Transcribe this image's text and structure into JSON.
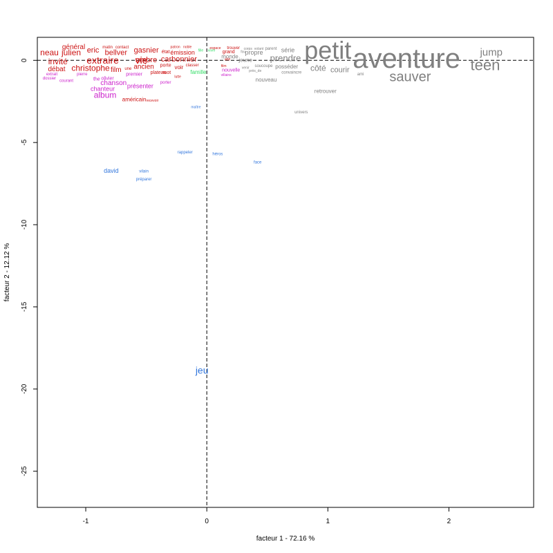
{
  "chart_data": {
    "type": "scatter",
    "title": "",
    "xlabel": "facteur  1  - 72.16 %",
    "ylabel": "facteur  2  - 12.12 %",
    "xlim": [
      -1.4,
      2.7
    ],
    "ylim": [
      -27.2,
      1.4
    ],
    "x_ticks": [
      -1,
      0,
      1,
      2
    ],
    "y_ticks": [
      0,
      -5,
      -10,
      -15,
      -20,
      -25
    ],
    "reference_lines": {
      "x": 0,
      "y": 0
    },
    "grid": false,
    "colors": {
      "red": "#cc1111",
      "magenta": "#cc22cc",
      "blue": "#3377dd",
      "green": "#33dd66",
      "gray": "#7f7f7f"
    },
    "points": [
      {
        "label": "petit",
        "x": 1.0,
        "y": 0.5,
        "size": 36,
        "color": "gray"
      },
      {
        "label": "aventure",
        "x": 1.65,
        "y": 0.0,
        "size": 40,
        "color": "gray"
      },
      {
        "label": "sauver",
        "x": 1.68,
        "y": -1.05,
        "size": 20,
        "color": "gray"
      },
      {
        "label": "teen",
        "x": 2.3,
        "y": -0.35,
        "size": 22,
        "color": "gray"
      },
      {
        "label": "jump",
        "x": 2.35,
        "y": 0.45,
        "size": 15,
        "color": "gray"
      },
      {
        "label": "prendre",
        "x": 0.65,
        "y": 0.1,
        "size": 13,
        "color": "gray"
      },
      {
        "label": "côté",
        "x": 0.92,
        "y": -0.5,
        "size": 12,
        "color": "gray"
      },
      {
        "label": "courir",
        "x": 1.1,
        "y": -0.6,
        "size": 11,
        "color": "gray"
      },
      {
        "label": "série",
        "x": 0.67,
        "y": 0.6,
        "size": 9,
        "color": "gray"
      },
      {
        "label": "propre",
        "x": 0.39,
        "y": 0.45,
        "size": 9,
        "color": "gray"
      },
      {
        "label": "monde",
        "x": 0.19,
        "y": 0.2,
        "size": 8,
        "color": "gray"
      },
      {
        "label": "jeune",
        "x": 0.32,
        "y": 0.0,
        "size": 8,
        "color": "gray"
      },
      {
        "label": "posséder",
        "x": 0.66,
        "y": -0.4,
        "size": 8,
        "color": "gray"
      },
      {
        "label": "soucoupe",
        "x": 0.47,
        "y": -0.35,
        "size": 6,
        "color": "gray"
      },
      {
        "label": "convaincre",
        "x": 0.7,
        "y": -0.75,
        "size": 6,
        "color": "gray"
      },
      {
        "label": "nouveau",
        "x": 0.49,
        "y": -1.2,
        "size": 8,
        "color": "gray"
      },
      {
        "label": "ami",
        "x": 1.27,
        "y": -0.85,
        "size": 6,
        "color": "gray"
      },
      {
        "label": "retrouver",
        "x": 0.98,
        "y": -1.9,
        "size": 8,
        "color": "gray"
      },
      {
        "label": "univers",
        "x": 0.78,
        "y": -3.15,
        "size": 6,
        "color": "gray"
      },
      {
        "label": "corps",
        "x": 0.34,
        "y": 0.7,
        "size": 5,
        "color": "gray"
      },
      {
        "label": "volant",
        "x": 0.43,
        "y": 0.7,
        "size": 5,
        "color": "gray"
      },
      {
        "label": "parent",
        "x": 0.53,
        "y": 0.7,
        "size": 6,
        "color": "gray"
      },
      {
        "label": "près_de",
        "x": 0.4,
        "y": -0.65,
        "size": 5,
        "color": "gray"
      },
      {
        "label": "venir",
        "x": 0.32,
        "y": -0.45,
        "size": 5,
        "color": "gray"
      },
      {
        "label": "extraire",
        "x": -0.86,
        "y": -0.05,
        "size": 14,
        "color": "red"
      },
      {
        "label": "vie",
        "x": -0.54,
        "y": -0.05,
        "size": 14,
        "color": "red"
      },
      {
        "label": "julien",
        "x": -1.12,
        "y": 0.45,
        "size": 12,
        "color": "red"
      },
      {
        "label": "neau",
        "x": -1.3,
        "y": 0.45,
        "size": 12,
        "color": "red"
      },
      {
        "label": "invité",
        "x": -1.23,
        "y": -0.1,
        "size": 12,
        "color": "red"
      },
      {
        "label": "christophe",
        "x": -0.96,
        "y": -0.5,
        "size": 12,
        "color": "red"
      },
      {
        "label": "eric",
        "x": -0.94,
        "y": 0.6,
        "size": 11,
        "color": "red"
      },
      {
        "label": "bellver",
        "x": -0.75,
        "y": 0.45,
        "size": 11,
        "color": "red"
      },
      {
        "label": "gasnier",
        "x": -0.5,
        "y": 0.6,
        "size": 11,
        "color": "red"
      },
      {
        "label": "ambre",
        "x": -0.5,
        "y": 0.0,
        "size": 11,
        "color": "red"
      },
      {
        "label": "carbonnier",
        "x": -0.23,
        "y": 0.05,
        "size": 11,
        "color": "red"
      },
      {
        "label": "ancien",
        "x": -0.52,
        "y": -0.4,
        "size": 10,
        "color": "red"
      },
      {
        "label": "film",
        "x": -0.75,
        "y": -0.6,
        "size": 10,
        "color": "red"
      },
      {
        "label": "débat",
        "x": -1.24,
        "y": -0.55,
        "size": 10,
        "color": "red"
      },
      {
        "label": "général",
        "x": -1.1,
        "y": 0.8,
        "size": 10,
        "color": "red"
      },
      {
        "label": "émission",
        "x": -0.2,
        "y": 0.45,
        "size": 9,
        "color": "red"
      },
      {
        "label": "américain",
        "x": -0.6,
        "y": -2.4,
        "size": 8,
        "color": "red"
      },
      {
        "label": "voir",
        "x": -0.23,
        "y": -0.45,
        "size": 8,
        "color": "red"
      },
      {
        "label": "plateau",
        "x": -0.4,
        "y": -0.75,
        "size": 7,
        "color": "red"
      },
      {
        "label": "mot",
        "x": -0.33,
        "y": -0.75,
        "size": 7,
        "color": "red"
      },
      {
        "label": "porte",
        "x": -0.34,
        "y": -0.3,
        "size": 7,
        "color": "red"
      },
      {
        "label": "état",
        "x": -0.34,
        "y": 0.5,
        "size": 7,
        "color": "red"
      },
      {
        "label": "matin",
        "x": -0.82,
        "y": 0.8,
        "size": 6,
        "color": "red"
      },
      {
        "label": "contact",
        "x": -0.7,
        "y": 0.8,
        "size": 6,
        "color": "red"
      },
      {
        "label": "patron",
        "x": -0.26,
        "y": 0.8,
        "size": 5,
        "color": "red"
      },
      {
        "label": "noble",
        "x": -0.16,
        "y": 0.8,
        "size": 5,
        "color": "red"
      },
      {
        "label": "classer",
        "x": -0.12,
        "y": -0.3,
        "size": 6,
        "color": "red"
      },
      {
        "label": "lutte",
        "x": -0.24,
        "y": -1.0,
        "size": 5,
        "color": "red"
      },
      {
        "label": "recevoir",
        "x": -0.45,
        "y": -2.45,
        "size": 5,
        "color": "red"
      },
      {
        "label": "une",
        "x": -0.65,
        "y": -0.5,
        "size": 6,
        "color": "red"
      },
      {
        "label": "album",
        "x": -0.84,
        "y": -2.15,
        "size": 12,
        "color": "magenta"
      },
      {
        "label": "chanson",
        "x": -0.77,
        "y": -1.4,
        "size": 10,
        "color": "magenta"
      },
      {
        "label": "chanteur",
        "x": -0.86,
        "y": -1.75,
        "size": 9,
        "color": "magenta"
      },
      {
        "label": "présenter",
        "x": -0.55,
        "y": -1.6,
        "size": 9,
        "color": "magenta"
      },
      {
        "label": "premier",
        "x": -0.6,
        "y": -0.85,
        "size": 7,
        "color": "magenta"
      },
      {
        "label": "olivier",
        "x": -0.82,
        "y": -1.1,
        "size": 7,
        "color": "magenta"
      },
      {
        "label": "the",
        "x": -0.91,
        "y": -1.15,
        "size": 7,
        "color": "magenta"
      },
      {
        "label": "courant",
        "x": -1.16,
        "y": -1.25,
        "size": 6,
        "color": "magenta"
      },
      {
        "label": "dossier",
        "x": -1.3,
        "y": -1.1,
        "size": 6,
        "color": "magenta"
      },
      {
        "label": "extrait",
        "x": -1.28,
        "y": -0.85,
        "size": 6,
        "color": "magenta"
      },
      {
        "label": "pierre",
        "x": -1.03,
        "y": -0.85,
        "size": 6,
        "color": "magenta"
      },
      {
        "label": "porter",
        "x": -0.34,
        "y": -1.35,
        "size": 6,
        "color": "magenta"
      },
      {
        "label": "nouvelle",
        "x": 0.2,
        "y": -0.6,
        "size": 7,
        "color": "magenta"
      },
      {
        "label": "jeu",
        "x": -0.04,
        "y": -18.9,
        "size": 14,
        "color": "blue"
      },
      {
        "label": "david",
        "x": -0.79,
        "y": -6.75,
        "size": 9,
        "color": "blue"
      },
      {
        "label": "vilain",
        "x": -0.52,
        "y": -6.75,
        "size": 6,
        "color": "blue"
      },
      {
        "label": "préparer",
        "x": -0.52,
        "y": -7.25,
        "size": 6,
        "color": "blue"
      },
      {
        "label": "rappeler",
        "x": -0.18,
        "y": -5.6,
        "size": 6,
        "color": "blue"
      },
      {
        "label": "héros",
        "x": 0.09,
        "y": -5.7,
        "size": 6,
        "color": "blue"
      },
      {
        "label": "face",
        "x": 0.42,
        "y": -6.2,
        "size": 6,
        "color": "blue"
      },
      {
        "label": "maître",
        "x": -0.09,
        "y": -2.85,
        "size": 5,
        "color": "blue"
      },
      {
        "label": "famille",
        "x": -0.07,
        "y": -0.75,
        "size": 8,
        "color": "green"
      },
      {
        "label": "vivre",
        "x": 0.04,
        "y": 0.6,
        "size": 5,
        "color": "green"
      },
      {
        "label": "fille",
        "x": -0.05,
        "y": 0.6,
        "size": 5,
        "color": "green"
      },
      {
        "label": "grand",
        "x": 0.18,
        "y": 0.5,
        "size": 7,
        "color": "red"
      },
      {
        "label": "trouver",
        "x": 0.22,
        "y": 0.75,
        "size": 6,
        "color": "red"
      },
      {
        "label": "espace",
        "x": 0.07,
        "y": 0.75,
        "size": 5,
        "color": "red"
      },
      {
        "label": "ville",
        "x": 0.17,
        "y": 0.05,
        "size": 5,
        "color": "red"
      },
      {
        "label": "film",
        "x": 0.14,
        "y": -0.35,
        "size": 5,
        "color": "red"
      },
      {
        "label": "villains",
        "x": 0.16,
        "y": -0.9,
        "size": 5,
        "color": "magenta"
      },
      {
        "label": "fou",
        "x": 0.3,
        "y": 0.5,
        "size": 5,
        "color": "gray"
      }
    ]
  }
}
